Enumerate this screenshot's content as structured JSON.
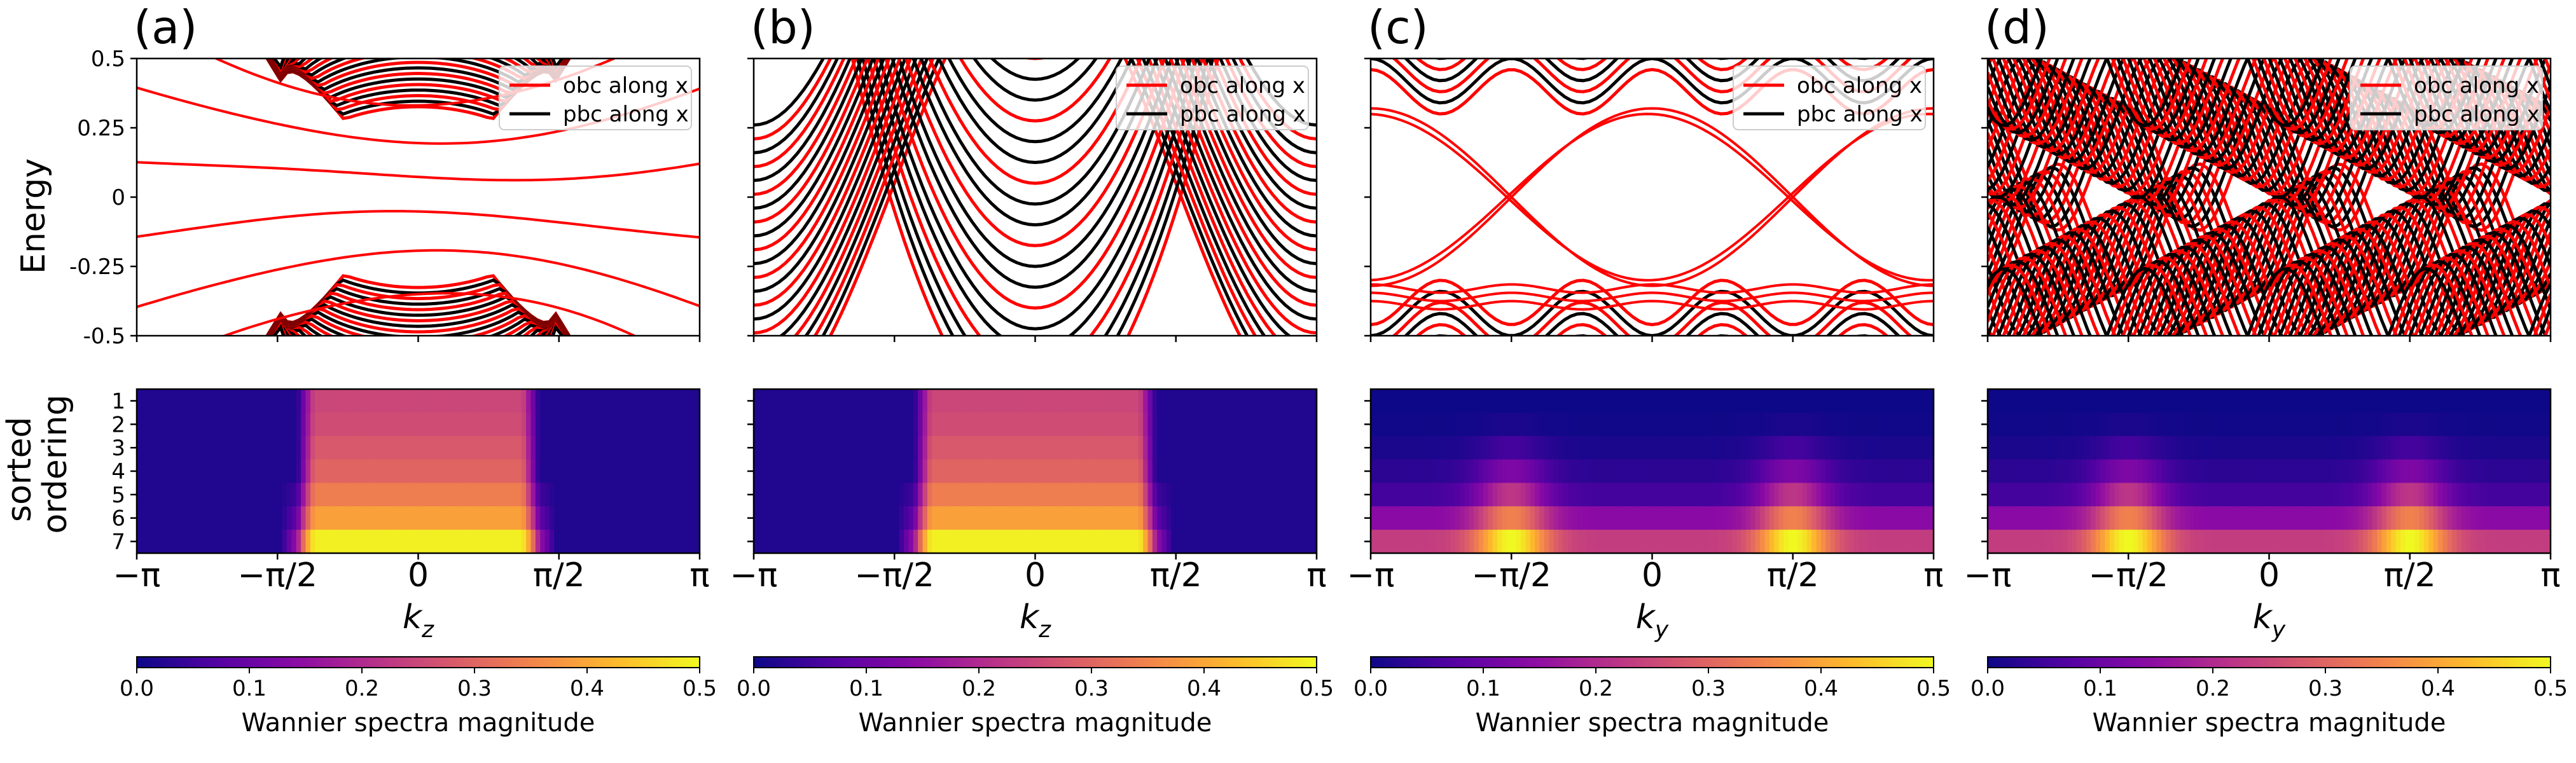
{
  "figure": {
    "energy_ylabel": "Energy",
    "wannier_ylabel": "sorted\nordering",
    "energy_yticks": [
      "0.5",
      "0.25",
      "0",
      "-0.25",
      "-0.5"
    ],
    "order_ticks": [
      "1",
      "2",
      "3",
      "4",
      "5",
      "6",
      "7"
    ],
    "x_ticks": [
      "−π",
      "−π/2",
      "0",
      "π/2",
      "π"
    ],
    "colorbar_ticks": [
      "0.0",
      "0.1",
      "0.2",
      "0.3",
      "0.4",
      "0.5"
    ],
    "colorbar_label": "Wannier spectra magnitude",
    "colormap": "plasma",
    "colors": {
      "obc": "#ff0000",
      "pbc": "#000000"
    }
  },
  "chart_data": [
    {
      "type": "line",
      "panel": "(a)",
      "title": "",
      "xlabel": "k_z",
      "ylabel": "Energy",
      "xlim": [
        "-π",
        "π"
      ],
      "ylim": [
        -0.5,
        0.5
      ],
      "legend_position": "top-right",
      "series": [
        {
          "name": "obc along x",
          "color": "#ff0000"
        },
        {
          "name": "pbc along x",
          "color": "#000000"
        }
      ],
      "features": {
        "mode": "gap",
        "bulk_offset": 0.1,
        "in_gap_obc_levels": [
          -0.35,
          -0.21,
          -0.07,
          0.07,
          0.21,
          0.35
        ],
        "gap_half_width_pi": 0.48
      },
      "wannier_heatmap": {
        "type": "heatmap",
        "xlabel": "k_z",
        "ylabel": "sorted ordering",
        "rows": 7,
        "vmin": 0.0,
        "vmax": 0.5,
        "center_plateau_values": [
          0.25,
          0.26,
          0.28,
          0.3,
          0.34,
          0.39,
          0.49
        ],
        "plateau_k_range_pi": [
          -0.37,
          0.37
        ],
        "outside_value": 0.02
      }
    },
    {
      "type": "line",
      "panel": "(b)",
      "title": "",
      "xlabel": "k_z",
      "ylabel": "Energy",
      "xlim": [
        "-π",
        "π"
      ],
      "ylim": [
        -0.5,
        0.5
      ],
      "legend_position": "top-right",
      "series": [
        {
          "name": "obc along x",
          "color": "#ff0000"
        },
        {
          "name": "pbc along x",
          "color": "#000000"
        }
      ],
      "features": {
        "mode": "parabolic",
        "bulk_offset": -0.45
      },
      "wannier_heatmap": {
        "type": "heatmap",
        "xlabel": "k_z",
        "ylabel": "sorted ordering",
        "rows": 7,
        "vmin": 0.0,
        "vmax": 0.5,
        "center_plateau_values": [
          0.25,
          0.26,
          0.28,
          0.3,
          0.34,
          0.39,
          0.49
        ],
        "plateau_k_range_pi": [
          -0.37,
          0.37
        ],
        "outside_value": 0.02
      }
    },
    {
      "type": "line",
      "panel": "(c)",
      "title": "",
      "xlabel": "k_y",
      "ylabel": "Energy",
      "xlim": [
        "-π",
        "π"
      ],
      "ylim": [
        -0.5,
        0.5
      ],
      "legend_position": "top-right",
      "series": [
        {
          "name": "obc along x",
          "color": "#ff0000"
        },
        {
          "name": "pbc along x",
          "color": "#000000"
        }
      ],
      "features": {
        "mode": "crossing",
        "flat_obc_levels": [
          -0.33,
          -0.36,
          -0.39
        ]
      },
      "wannier_heatmap": {
        "type": "heatmap",
        "xlabel": "k_y",
        "ylabel": "sorted ordering",
        "rows": 7,
        "vmin": 0.0,
        "vmax": 0.5,
        "peak_k_pi": [
          -0.5,
          0.5
        ],
        "peak_value": 0.5,
        "top_value": 0.0
      }
    },
    {
      "type": "line",
      "panel": "(d)",
      "title": "",
      "xlabel": "k_y",
      "ylabel": "Energy",
      "xlim": [
        "-π",
        "π"
      ],
      "ylim": [
        -0.5,
        0.5
      ],
      "legend_position": "top-right",
      "series": [
        {
          "name": "obc along x",
          "color": "#ff0000"
        },
        {
          "name": "pbc along x",
          "color": "#000000"
        }
      ],
      "features": {
        "mode": "dense"
      },
      "wannier_heatmap": {
        "type": "heatmap",
        "xlabel": "k_y",
        "ylabel": "sorted ordering",
        "rows": 7,
        "vmin": 0.0,
        "vmax": 0.5,
        "peak_k_pi": [
          -0.5,
          0.5
        ],
        "peak_value": 0.5,
        "top_value": 0.0
      }
    }
  ]
}
